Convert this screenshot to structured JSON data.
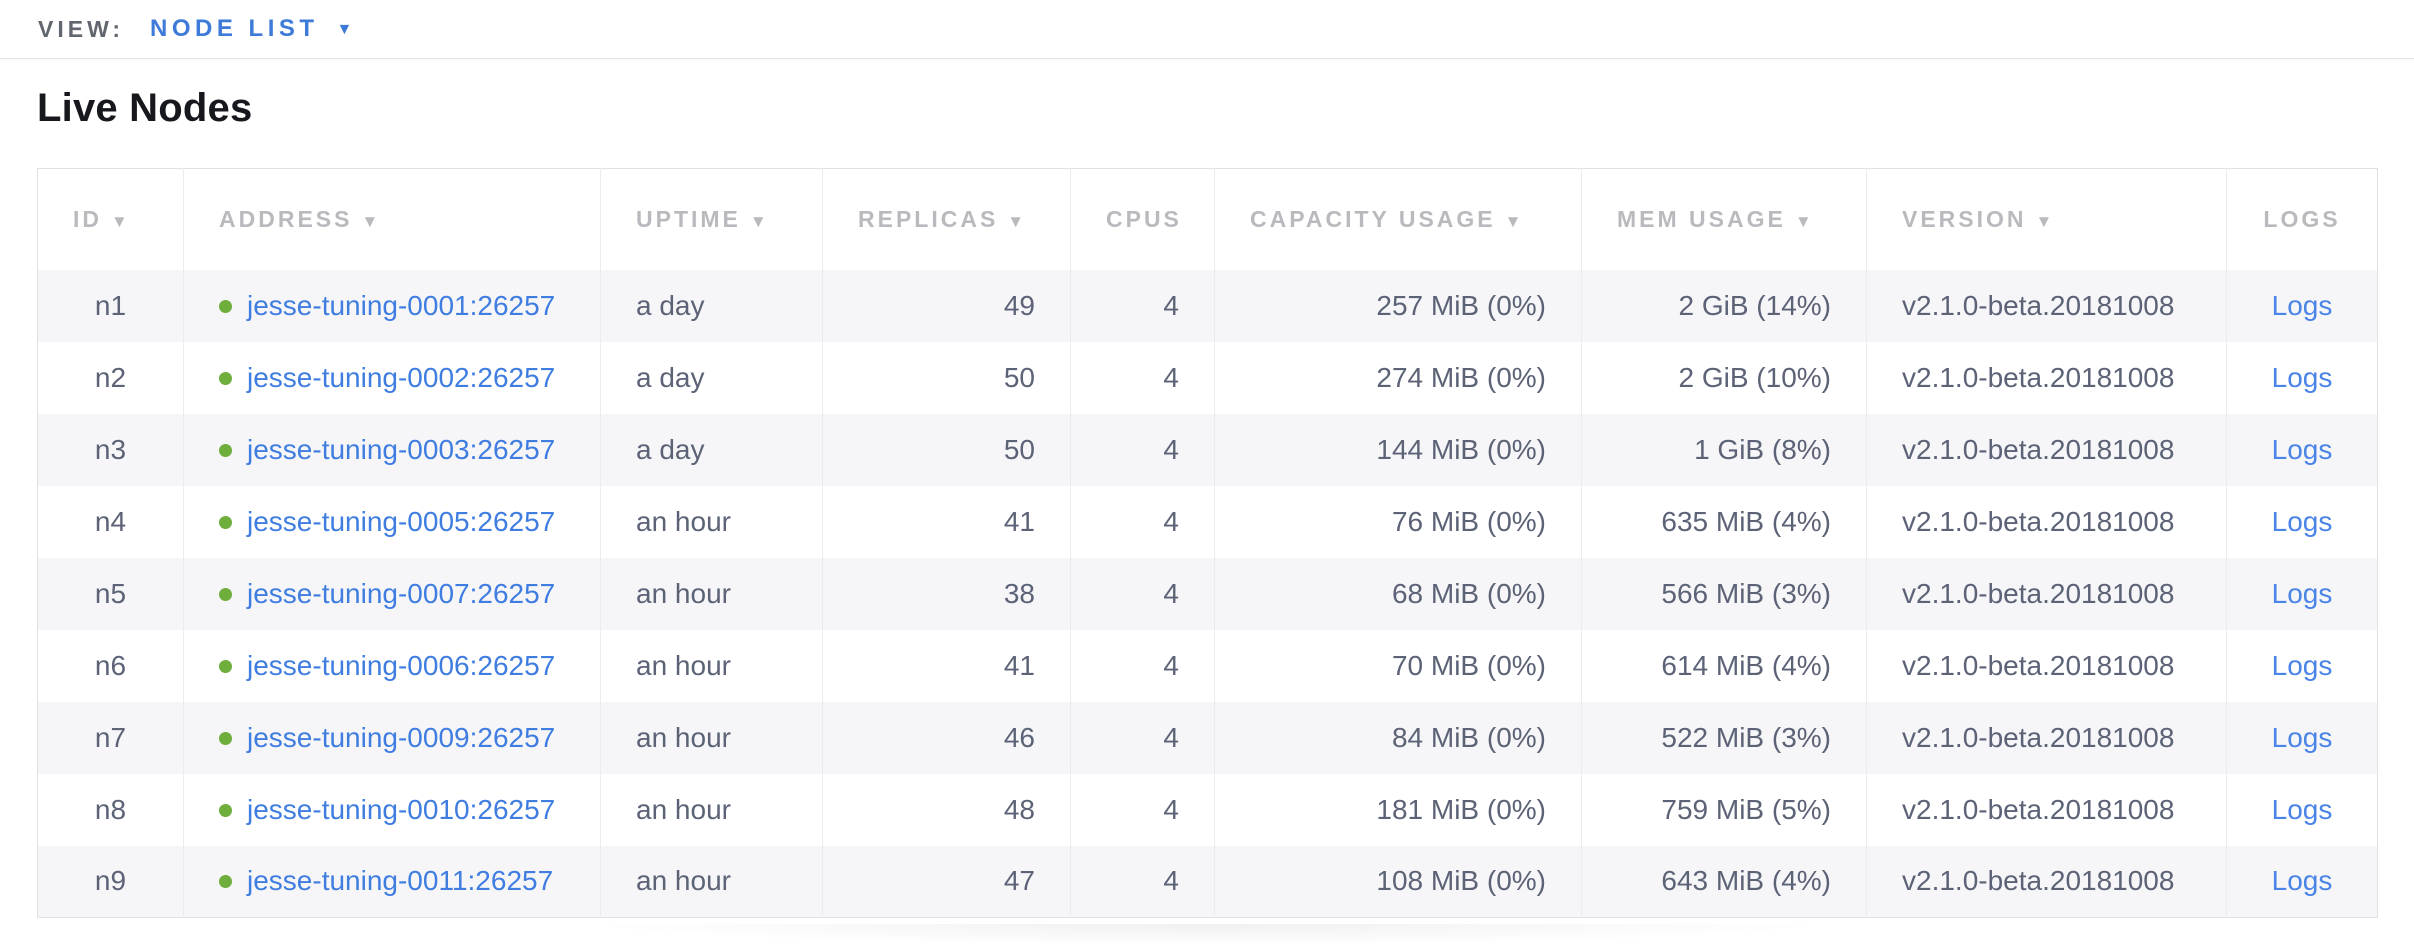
{
  "toolbar": {
    "view_label": "VIEW:",
    "view_value": "NODE LIST"
  },
  "page": {
    "title": "Live Nodes"
  },
  "icons": {
    "sort_arrow": "▼",
    "dropdown_caret": "▼",
    "status_dot": ""
  },
  "colors": {
    "accent_blue": "#3e7ad7",
    "link_blue": "#3f7de0",
    "logs_link_blue": "#4a84e6",
    "healthy_green": "#6fad3d",
    "header_gray": "#b9babe",
    "cell_slate": "#5c6377",
    "row_stripe": "#f6f6f8",
    "border": "#e1e1e4"
  },
  "table": {
    "columns": [
      {
        "key": "id",
        "label": "ID",
        "sortable": true
      },
      {
        "key": "address",
        "label": "ADDRESS",
        "sortable": true
      },
      {
        "key": "uptime",
        "label": "UPTIME",
        "sortable": true
      },
      {
        "key": "replicas",
        "label": "REPLICAS",
        "sortable": true
      },
      {
        "key": "cpus",
        "label": "CPUS",
        "sortable": false
      },
      {
        "key": "capacity",
        "label": "CAPACITY USAGE",
        "sortable": true
      },
      {
        "key": "mem",
        "label": "MEM USAGE",
        "sortable": true
      },
      {
        "key": "version",
        "label": "VERSION",
        "sortable": true
      },
      {
        "key": "logs",
        "label": "LOGS",
        "sortable": false
      }
    ],
    "rows": [
      {
        "id": "n1",
        "address": "jesse-tuning-0001:26257",
        "uptime": "a day",
        "replicas": "49",
        "cpus": "4",
        "capacity": "257 MiB (0%)",
        "mem": "2 GiB (14%)",
        "version": "v2.1.0-beta.20181008",
        "logs": "Logs"
      },
      {
        "id": "n2",
        "address": "jesse-tuning-0002:26257",
        "uptime": "a day",
        "replicas": "50",
        "cpus": "4",
        "capacity": "274 MiB (0%)",
        "mem": "2 GiB (10%)",
        "version": "v2.1.0-beta.20181008",
        "logs": "Logs"
      },
      {
        "id": "n3",
        "address": "jesse-tuning-0003:26257",
        "uptime": "a day",
        "replicas": "50",
        "cpus": "4",
        "capacity": "144 MiB (0%)",
        "mem": "1 GiB (8%)",
        "version": "v2.1.0-beta.20181008",
        "logs": "Logs"
      },
      {
        "id": "n4",
        "address": "jesse-tuning-0005:26257",
        "uptime": "an hour",
        "replicas": "41",
        "cpus": "4",
        "capacity": "76 MiB (0%)",
        "mem": "635 MiB (4%)",
        "version": "v2.1.0-beta.20181008",
        "logs": "Logs"
      },
      {
        "id": "n5",
        "address": "jesse-tuning-0007:26257",
        "uptime": "an hour",
        "replicas": "38",
        "cpus": "4",
        "capacity": "68 MiB (0%)",
        "mem": "566 MiB (3%)",
        "version": "v2.1.0-beta.20181008",
        "logs": "Logs"
      },
      {
        "id": "n6",
        "address": "jesse-tuning-0006:26257",
        "uptime": "an hour",
        "replicas": "41",
        "cpus": "4",
        "capacity": "70 MiB (0%)",
        "mem": "614 MiB (4%)",
        "version": "v2.1.0-beta.20181008",
        "logs": "Logs"
      },
      {
        "id": "n7",
        "address": "jesse-tuning-0009:26257",
        "uptime": "an hour",
        "replicas": "46",
        "cpus": "4",
        "capacity": "84 MiB (0%)",
        "mem": "522 MiB (3%)",
        "version": "v2.1.0-beta.20181008",
        "logs": "Logs"
      },
      {
        "id": "n8",
        "address": "jesse-tuning-0010:26257",
        "uptime": "an hour",
        "replicas": "48",
        "cpus": "4",
        "capacity": "181 MiB (0%)",
        "mem": "759 MiB (5%)",
        "version": "v2.1.0-beta.20181008",
        "logs": "Logs"
      },
      {
        "id": "n9",
        "address": "jesse-tuning-0011:26257",
        "uptime": "an hour",
        "replicas": "47",
        "cpus": "4",
        "capacity": "108 MiB (0%)",
        "mem": "643 MiB (4%)",
        "version": "v2.1.0-beta.20181008",
        "logs": "Logs"
      }
    ]
  }
}
